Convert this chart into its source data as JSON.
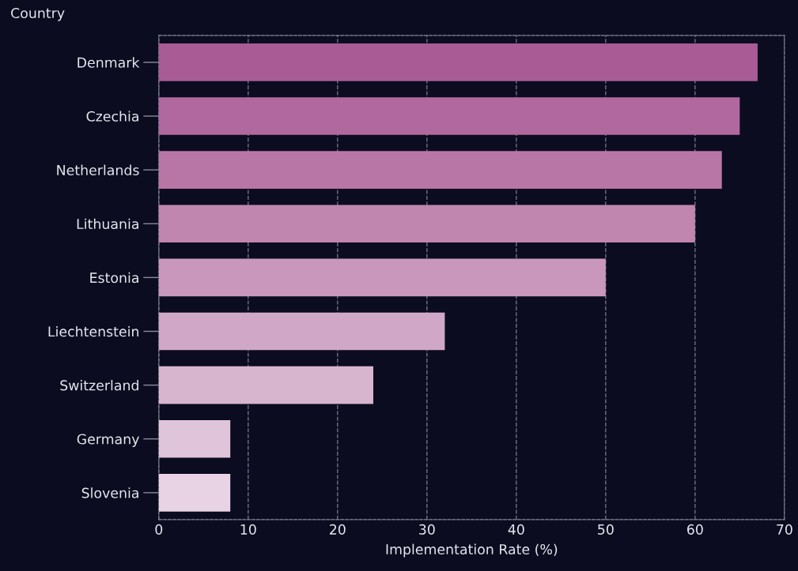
{
  "chart_data": {
    "type": "bar",
    "orientation": "horizontal",
    "categories": [
      "Denmark",
      "Czechia",
      "Netherlands",
      "Lithuania",
      "Estonia",
      "Liechtenstein",
      "Switzerland",
      "Germany",
      "Slovenia"
    ],
    "values": [
      67,
      65,
      63,
      60,
      50,
      32,
      24,
      8,
      8
    ],
    "colors": [
      "#a85b94",
      "#b0689e",
      "#b876a7",
      "#c086b0",
      "#c897bb",
      "#d0a7c6",
      "#d8b5cf",
      "#e0c4da",
      "#e8d3e5"
    ],
    "xlabel": "Implementation Rate (%)",
    "ylabel": "Country",
    "xlim": [
      0,
      70
    ],
    "xticks": [
      0,
      10,
      20,
      30,
      40,
      50,
      60,
      70
    ],
    "grid": "x"
  }
}
